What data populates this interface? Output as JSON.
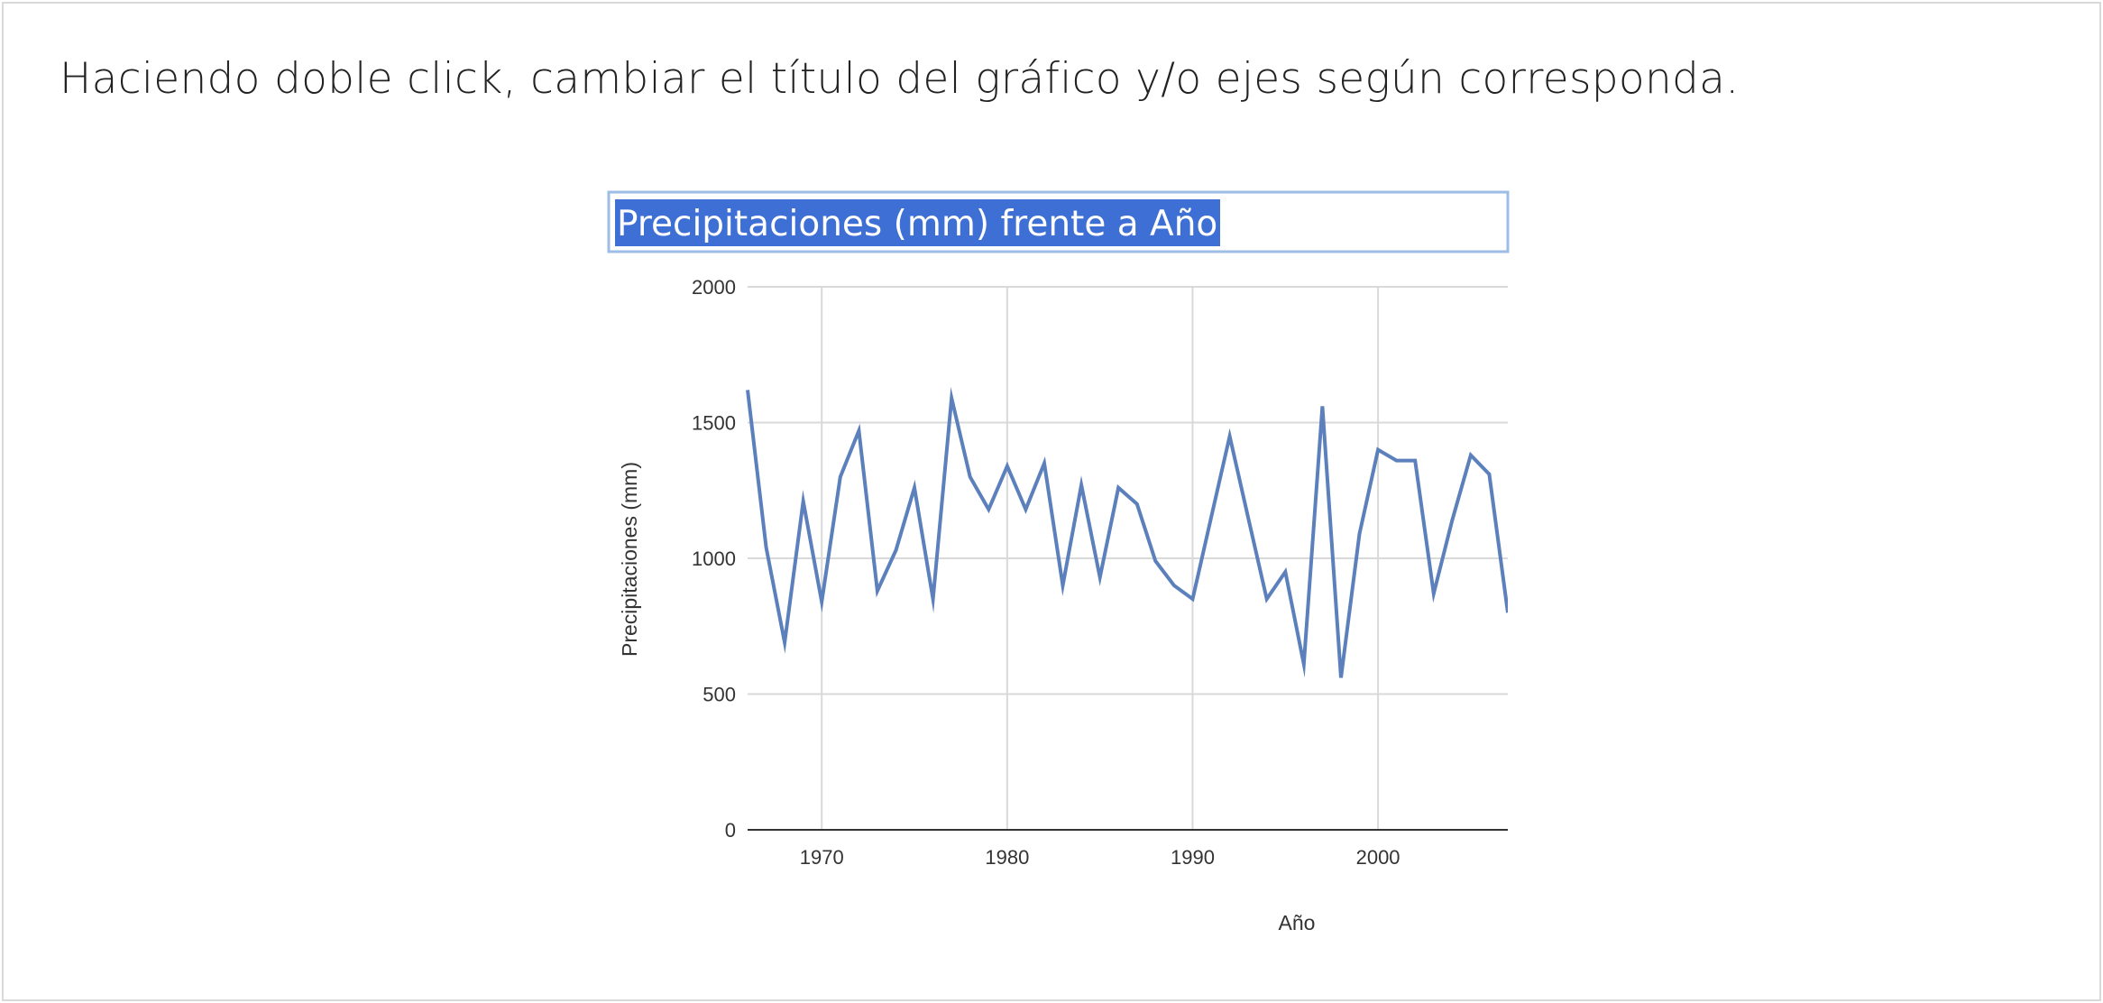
{
  "instruction": "Haciendo doble click, cambiar el título del gráfico y/o ejes según corresponda.",
  "colors": {
    "line": "#5b80bb",
    "title_highlight": "#3d6fd4",
    "title_box_border": "#9dbde6",
    "grid": "#d9d9d9"
  },
  "chart_data": {
    "type": "line",
    "title": "Precipitaciones (mm) frente a Año",
    "title_state": "selected-for-editing",
    "xlabel": "Año",
    "ylabel": "Precipitaciones (mm)",
    "xlim": [
      1966,
      2007
    ],
    "ylim": [
      0,
      2000
    ],
    "x_ticks": [
      1970,
      1980,
      1990,
      2000
    ],
    "y_ticks": [
      0,
      500,
      1000,
      1500,
      2000
    ],
    "grid": true,
    "legend": "none",
    "series": [
      {
        "x": [
          1966,
          1967,
          1968,
          1969,
          1970,
          1971,
          1972,
          1973,
          1974,
          1975,
          1976,
          1977,
          1978,
          1979,
          1980,
          1981,
          1982,
          1983,
          1984,
          1985,
          1986,
          1987,
          1988,
          1989,
          1990,
          1991,
          1992,
          1993,
          1994,
          1995,
          1996,
          1997,
          1998,
          1999,
          2000,
          2001,
          2002,
          2003,
          2004,
          2005,
          2006,
          2007
        ],
        "values": [
          1620,
          1040,
          690,
          1210,
          840,
          1300,
          1470,
          880,
          1030,
          1260,
          850,
          1590,
          1300,
          1180,
          1340,
          1180,
          1350,
          900,
          1270,
          930,
          1260,
          1200,
          990,
          900,
          850,
          1150,
          1450,
          1150,
          850,
          950,
          610,
          1560,
          560,
          1090,
          1400,
          1360,
          1360,
          870,
          1140,
          1380,
          1310,
          800
        ]
      }
    ]
  }
}
